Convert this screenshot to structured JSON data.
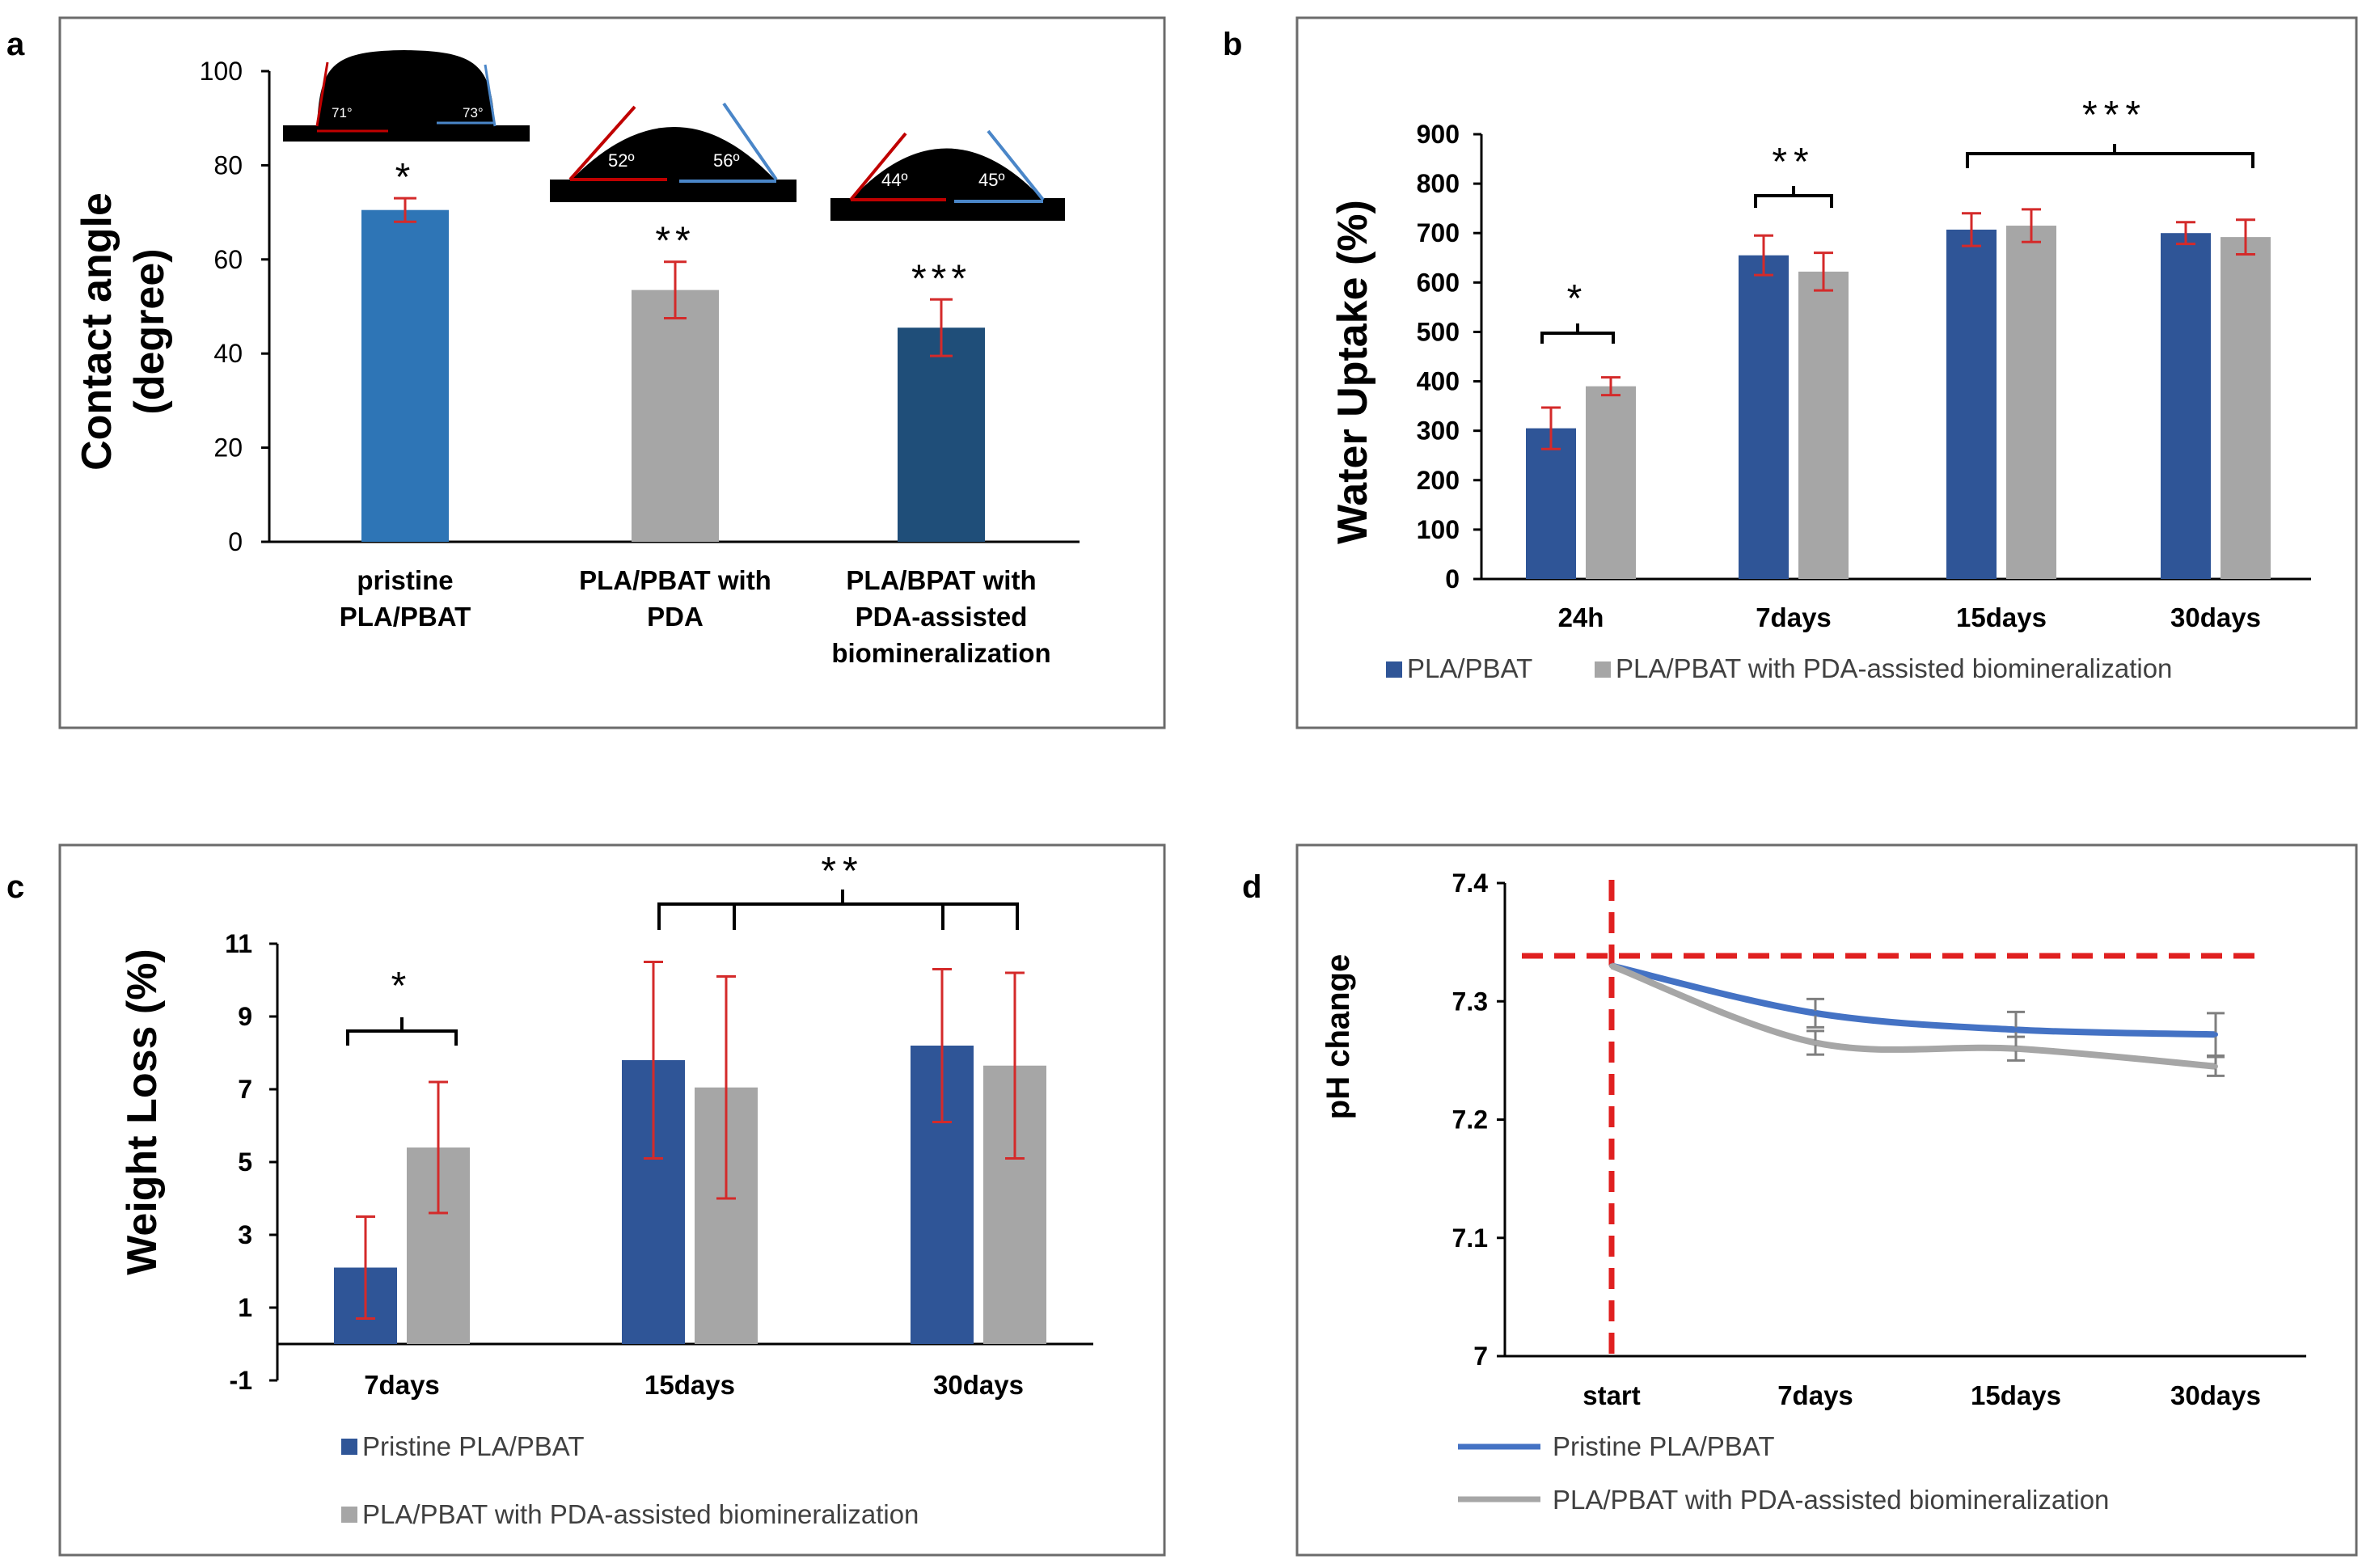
{
  "panels": {
    "a": {
      "label": "a"
    },
    "b": {
      "label": "b"
    },
    "c": {
      "label": "c"
    },
    "d": {
      "label": "d"
    }
  },
  "chart_data": [
    {
      "panel": "a",
      "type": "bar",
      "ylabel_line1": "Contact angle",
      "ylabel_line2": "(degree)",
      "ylim": [
        0,
        100
      ],
      "yticks": [
        0,
        20,
        40,
        60,
        80,
        100
      ],
      "category_lines": [
        [
          "pristine",
          "PLA/PBAT"
        ],
        [
          "PLA/PBAT with",
          "PDA"
        ],
        [
          "PLA/BPAT with",
          "PDA-assisted",
          "biomineralization"
        ]
      ],
      "values": [
        70.5,
        53.5,
        45.5
      ],
      "errors": [
        2.5,
        6.0,
        6.0
      ],
      "colors": [
        "#2e75b6",
        "#a6a6a6",
        "#1f4e79"
      ],
      "significance": [
        "*",
        "**",
        "***"
      ],
      "inset_angles": [
        [
          "71°",
          "73°"
        ],
        [
          "52º",
          "56º"
        ],
        [
          "44º",
          "45º"
        ]
      ]
    },
    {
      "panel": "b",
      "type": "bar",
      "ylabel": "Water Uptake (%)",
      "ylim": [
        0,
        900
      ],
      "yticks": [
        0,
        100,
        200,
        300,
        400,
        500,
        600,
        700,
        800,
        900
      ],
      "categories": [
        "24h",
        "7days",
        "15days",
        "30days"
      ],
      "series": [
        {
          "name": "PLA/PBAT",
          "color": "#2f5597",
          "values": [
            305,
            655,
            707,
            700
          ],
          "errors": [
            42,
            40,
            33,
            22
          ]
        },
        {
          "name": "PLA/PBAT with PDA-assisted biomineralization",
          "color": "#a6a6a6",
          "values": [
            390,
            622,
            715,
            692
          ],
          "errors": [
            18,
            38,
            33,
            35
          ]
        }
      ],
      "significance": [
        "*",
        "**",
        "***"
      ]
    },
    {
      "panel": "c",
      "type": "bar",
      "ylabel": "Weight Loss (%)",
      "ylim": [
        -1,
        11
      ],
      "yticks": [
        -1,
        1,
        3,
        5,
        7,
        9,
        11
      ],
      "categories": [
        "7days",
        "15days",
        "30days"
      ],
      "series": [
        {
          "name": "Pristine PLA/PBAT",
          "color": "#2f5597",
          "values": [
            2.1,
            7.8,
            8.2
          ],
          "errors": [
            1.4,
            2.7,
            2.1
          ]
        },
        {
          "name": "PLA/PBAT with PDA-assisted biomineralization",
          "color": "#a6a6a6",
          "values": [
            5.4,
            7.05,
            7.65
          ],
          "errors": [
            1.8,
            3.05,
            2.55
          ]
        }
      ],
      "significance": [
        "*",
        "**"
      ]
    },
    {
      "panel": "d",
      "type": "line",
      "ylabel": "pH change",
      "ylim": [
        7.0,
        7.4
      ],
      "ytick_labels": [
        "7",
        "7.1",
        "7.2",
        "7.3",
        "7.4"
      ],
      "yticks": [
        7.0,
        7.1,
        7.2,
        7.3,
        7.4
      ],
      "categories": [
        "start",
        "7days",
        "15days",
        "30days"
      ],
      "reference_y": 7.333,
      "series": [
        {
          "name": "Pristine PLA/PBAT",
          "color": "#4472c4",
          "values": [
            7.33,
            7.29,
            7.276,
            7.272
          ],
          "errors": [
            0,
            0.012,
            0.015,
            0.018
          ]
        },
        {
          "name": "PLA/PBAT with PDA-assisted biomineralization",
          "color": "#a6a6a6",
          "values": [
            7.33,
            7.265,
            7.26,
            7.245
          ],
          "errors": [
            0,
            0.01,
            0.01,
            0.008
          ]
        }
      ]
    }
  ]
}
